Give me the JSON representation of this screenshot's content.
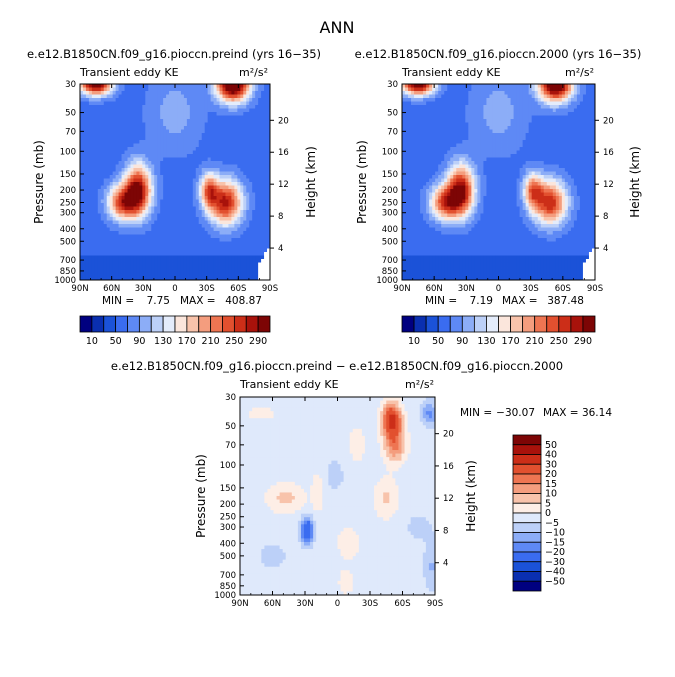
{
  "chart_data": {
    "type": "heatmap",
    "title": "ANN",
    "panels": [
      {
        "id": "preind",
        "title": "e.e12.B1850CN.f09_g16.pioccn.preind (yrs 16−35)",
        "variable": "Transient eddy KE",
        "units": "m²/s²",
        "ylabel": "Pressure (mb)",
        "ylabel_right": "Height (km)",
        "x_ticks": [
          "90N",
          "60N",
          "30N",
          "0",
          "30S",
          "60S",
          "90S"
        ],
        "y_ticks": [
          "30",
          "50",
          "70",
          "100",
          "150",
          "200",
          "250",
          "300",
          "400",
          "500",
          "700",
          "850",
          "1000"
        ],
        "height_ticks": [
          "20",
          "16",
          "12",
          "8",
          "4"
        ],
        "min_label": "MIN =",
        "min_value": "7.75",
        "max_label": "MAX =",
        "max_value": "408.87",
        "cbar_labels": [
          "10",
          "50",
          "90",
          "130",
          "170",
          "210",
          "250",
          "290"
        ],
        "features": [
          {
            "lat": -55,
            "p": 30,
            "value": 300,
            "sx": 11,
            "sy": 0.22
          },
          {
            "lat": 75,
            "p": 30,
            "value": 260,
            "sx": 11,
            "sy": 0.14
          },
          {
            "lat": 35,
            "p": 200,
            "value": 230,
            "sx": 9,
            "sy": 0.32
          },
          {
            "lat": 50,
            "p": 250,
            "value": 180,
            "sx": 10,
            "sy": 0.22
          },
          {
            "lat": -48,
            "p": 250,
            "value": 215,
            "sx": 11,
            "sy": 0.28
          },
          {
            "lat": -32,
            "p": 200,
            "value": 150,
            "sx": 6,
            "sy": 0.22
          }
        ]
      },
      {
        "id": "y2000",
        "title": "e.e12.B1850CN.f09_g16.pioccn.2000 (yrs 16−35)",
        "variable": "Transient eddy KE",
        "units": "m²/s²",
        "ylabel": "Pressure (mb)",
        "ylabel_right": "Height (km)",
        "x_ticks": [
          "90N",
          "60N",
          "30N",
          "0",
          "30S",
          "60S",
          "90S"
        ],
        "y_ticks": [
          "30",
          "50",
          "70",
          "100",
          "150",
          "200",
          "250",
          "300",
          "400",
          "500",
          "700",
          "850",
          "1000"
        ],
        "height_ticks": [
          "20",
          "16",
          "12",
          "8",
          "4"
        ],
        "min_label": "MIN =",
        "min_value": "7.19",
        "max_label": "MAX =",
        "max_value": "387.48",
        "cbar_labels": [
          "10",
          "50",
          "90",
          "130",
          "170",
          "210",
          "250",
          "290"
        ],
        "features": [
          {
            "lat": -53,
            "p": 30,
            "value": 290,
            "sx": 11,
            "sy": 0.22
          },
          {
            "lat": 75,
            "p": 30,
            "value": 255,
            "sx": 11,
            "sy": 0.14
          },
          {
            "lat": 35,
            "p": 200,
            "value": 225,
            "sx": 9,
            "sy": 0.32
          },
          {
            "lat": 50,
            "p": 250,
            "value": 175,
            "sx": 10,
            "sy": 0.22
          },
          {
            "lat": -48,
            "p": 250,
            "value": 205,
            "sx": 11,
            "sy": 0.28
          },
          {
            "lat": -32,
            "p": 200,
            "value": 145,
            "sx": 6,
            "sy": 0.22
          }
        ]
      },
      {
        "id": "diff",
        "title": "e.e12.B1850CN.f09_g16.pioccn.preind − e.e12.B1850CN.f09_g16.pioccn.2000",
        "variable": "Transient eddy KE",
        "units": "m²/s²",
        "ylabel": "Pressure (mb)",
        "ylabel_right": "Height (km)",
        "x_ticks": [
          "90N",
          "60N",
          "30N",
          "0",
          "30S",
          "60S",
          "90S"
        ],
        "y_ticks": [
          "30",
          "50",
          "70",
          "100",
          "150",
          "200",
          "250",
          "300",
          "400",
          "500",
          "700",
          "850",
          "1000"
        ],
        "height_ticks": [
          "20",
          "16",
          "12",
          "8",
          "4"
        ],
        "min_label": "MIN =",
        "min_value": "−30.07",
        "max_label": "MAX =",
        "max_value": "36.14",
        "cbar_labels": [
          "50",
          "40",
          "30",
          "20",
          "15",
          "10",
          "5",
          "0",
          "−5",
          "−10",
          "−15",
          "−20",
          "−30",
          "−40",
          "−50"
        ],
        "features": [
          {
            "lat": -50,
            "p": 45,
            "value": 36,
            "sx": 6,
            "sy": 0.2
          },
          {
            "lat": -53,
            "p": 70,
            "value": 18,
            "sx": 7,
            "sy": 0.22
          },
          {
            "lat": -45,
            "p": 180,
            "value": 8,
            "sx": 8,
            "sy": 0.25
          },
          {
            "lat": -18,
            "p": 70,
            "value": 7,
            "sx": 5,
            "sy": 0.2
          },
          {
            "lat": -10,
            "p": 400,
            "value": 5,
            "sx": 8,
            "sy": 0.25
          },
          {
            "lat": -8,
            "p": 800,
            "value": 6,
            "sx": 5,
            "sy": 0.15
          },
          {
            "lat": 48,
            "p": 180,
            "value": 9,
            "sx": 12,
            "sy": 0.18
          },
          {
            "lat": 70,
            "p": 40,
            "value": 4,
            "sx": 12,
            "sy": 0.12
          },
          {
            "lat": 18,
            "p": 160,
            "value": 7,
            "sx": 4,
            "sy": 0.25
          },
          {
            "lat": 28,
            "p": 320,
            "value": -28,
            "sx": 4,
            "sy": 0.16
          },
          {
            "lat": -85,
            "p": 40,
            "value": -14,
            "sx": 5,
            "sy": 0.15
          },
          {
            "lat": -75,
            "p": 300,
            "value": -4,
            "sx": 10,
            "sy": 0.2
          },
          {
            "lat": -87,
            "p": 600,
            "value": -8,
            "sx": 5,
            "sy": 0.3
          },
          {
            "lat": 60,
            "p": 500,
            "value": -4,
            "sx": 12,
            "sy": 0.2
          },
          {
            "lat": 3,
            "p": 120,
            "value": -4,
            "sx": 8,
            "sy": 0.25
          }
        ]
      }
    ]
  }
}
